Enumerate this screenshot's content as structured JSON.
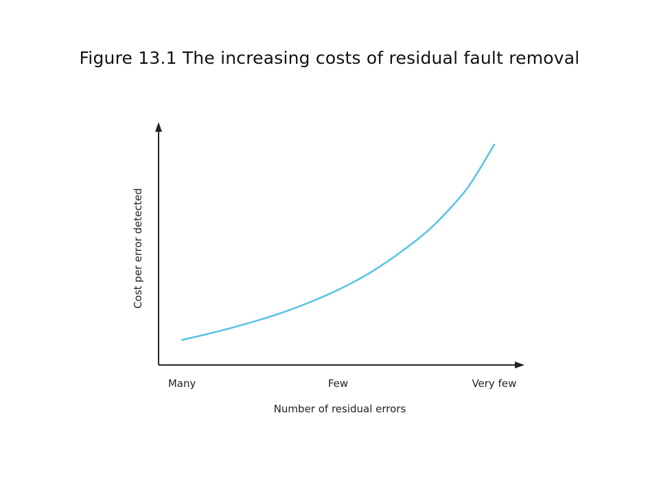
{
  "slide": {
    "title": "Figure 13.1 The increasing costs of residual fault removal"
  },
  "chart_data": {
    "type": "line",
    "title": "Figure 13.1 The increasing costs of residual fault removal",
    "xlabel": "Number of residual errors",
    "ylabel": "Cost per error detected",
    "categories": [
      "Many",
      "Few",
      "Very few"
    ],
    "x": [
      0,
      0.1,
      0.2,
      0.3,
      0.4,
      0.5,
      0.6,
      0.7,
      0.8,
      0.9,
      0.95,
      1.0
    ],
    "series": [
      {
        "name": "",
        "color": "#5bc3e6",
        "values": [
          0.06,
          0.095,
          0.135,
          0.18,
          0.235,
          0.3,
          0.38,
          0.48,
          0.6,
          0.76,
          0.87,
          0.995
        ]
      }
    ],
    "xlim": [
      -0.075,
      1.075
    ],
    "ylim": [
      -0.06,
      1.07
    ],
    "grid": false,
    "legend": "none"
  }
}
